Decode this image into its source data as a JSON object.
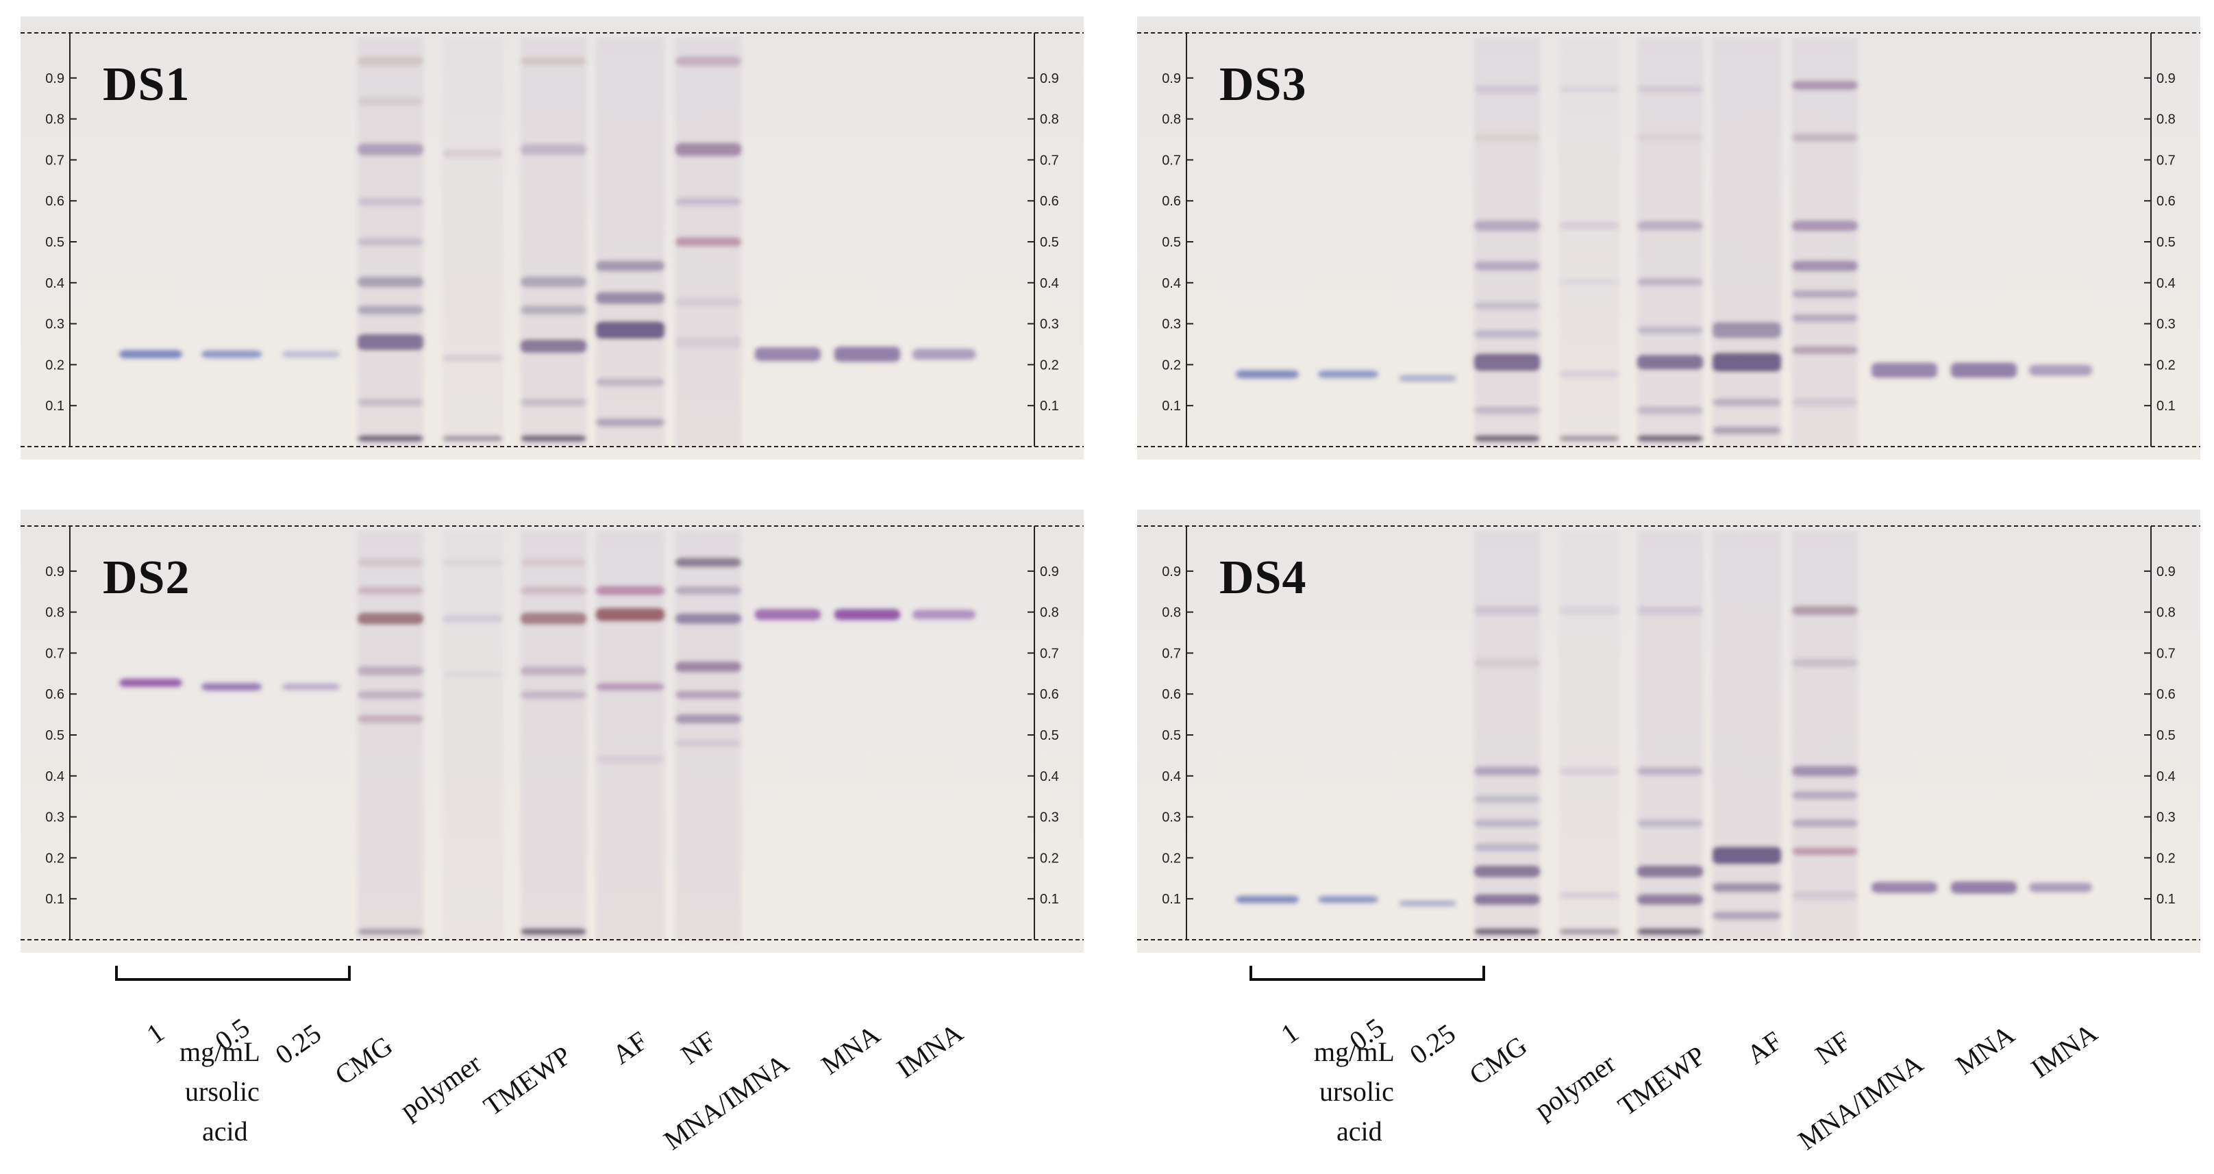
{
  "plates": [
    {
      "id": "DS1",
      "title": "DS1",
      "std_rf": 0.22,
      "lanes": [
        {
          "bands": [
            [
              0.22,
              8,
              "#6a76b6",
              0.85
            ]
          ]
        },
        {
          "bands": [
            [
              0.22,
              7,
              "#6a76b6",
              0.7
            ]
          ]
        },
        {
          "bands": [
            [
              0.22,
              6,
              "#8f95c4",
              0.5
            ]
          ]
        },
        {
          "bands": [
            [
              0.95,
              10,
              "#b7a79c",
              0.4
            ],
            [
              0.85,
              8,
              "#b7aab0",
              0.3
            ],
            [
              0.73,
              14,
              "#8a6f9b",
              0.55
            ],
            [
              0.6,
              8,
              "#9a8fb0",
              0.35
            ],
            [
              0.5,
              8,
              "#8c8aa8",
              0.35
            ],
            [
              0.4,
              12,
              "#7a7390",
              0.55
            ],
            [
              0.33,
              10,
              "#7f7a95",
              0.5
            ],
            [
              0.25,
              20,
              "#6d5a84",
              0.8
            ],
            [
              0.1,
              8,
              "#8d86a0",
              0.35
            ],
            [
              0.01,
              6,
              "#4a3a55",
              0.7
            ]
          ]
        },
        {
          "bands": [
            [
              0.72,
              8,
              "#b9a8b5",
              0.35
            ],
            [
              0.21,
              6,
              "#b2a9bc",
              0.35
            ],
            [
              0.01,
              5,
              "#6a5a70",
              0.5
            ]
          ]
        },
        {
          "bands": [
            [
              0.95,
              8,
              "#b7a79c",
              0.4
            ],
            [
              0.73,
              12,
              "#9a85a8",
              0.45
            ],
            [
              0.4,
              12,
              "#7a7390",
              0.5
            ],
            [
              0.33,
              10,
              "#7f7a95",
              0.45
            ],
            [
              0.24,
              16,
              "#6d5a84",
              0.75
            ],
            [
              0.1,
              8,
              "#8d86a0",
              0.35
            ],
            [
              0.01,
              6,
              "#4a3a55",
              0.7
            ]
          ]
        },
        {
          "bands": [
            [
              0.44,
              12,
              "#7a6f90",
              0.6
            ],
            [
              0.36,
              14,
              "#6e6488",
              0.65
            ],
            [
              0.28,
              22,
              "#5e4c7a",
              0.85
            ],
            [
              0.15,
              8,
              "#8a7e9e",
              0.4
            ],
            [
              0.05,
              8,
              "#7a6f90",
              0.5
            ]
          ]
        },
        {
          "bands": [
            [
              0.95,
              10,
              "#a7869c",
              0.5
            ],
            [
              0.73,
              16,
              "#86608c",
              0.65
            ],
            [
              0.6,
              8,
              "#9a8fb0",
              0.4
            ],
            [
              0.5,
              10,
              "#9c5f80",
              0.55
            ],
            [
              0.35,
              10,
              "#b3a7bd",
              0.3
            ],
            [
              0.25,
              12,
              "#b3a7bd",
              0.3
            ]
          ]
        },
        {
          "bands": [
            [
              0.22,
              16,
              "#7c659a",
              0.75
            ]
          ]
        },
        {
          "bands": [
            [
              0.22,
              18,
              "#7c659a",
              0.8
            ]
          ]
        },
        {
          "bands": [
            [
              0.22,
              12,
              "#8a78a8",
              0.65
            ]
          ]
        }
      ]
    },
    {
      "id": "DS3",
      "title": "DS3",
      "lanes": [
        {
          "bands": [
            [
              0.17,
              8,
              "#6a76b6",
              0.8
            ]
          ]
        },
        {
          "bands": [
            [
              0.17,
              7,
              "#6a76b6",
              0.7
            ]
          ]
        },
        {
          "bands": [
            [
              0.16,
              6,
              "#7f87b8",
              0.55
            ]
          ]
        },
        {
          "bands": [
            [
              0.88,
              8,
              "#b3a9c2",
              0.4
            ],
            [
              0.76,
              8,
              "#c0b6b0",
              0.3
            ],
            [
              0.54,
              12,
              "#8c7aa2",
              0.5
            ],
            [
              0.44,
              10,
              "#8c7aa2",
              0.5
            ],
            [
              0.34,
              8,
              "#9a96b4",
              0.4
            ],
            [
              0.27,
              8,
              "#8f8aab",
              0.45
            ],
            [
              0.2,
              22,
              "#6d5a84",
              0.85
            ],
            [
              0.08,
              8,
              "#8d86a0",
              0.4
            ],
            [
              0.01,
              6,
              "#4a3a55",
              0.7
            ]
          ]
        },
        {
          "bands": [
            [
              0.88,
              6,
              "#c0b8cc",
              0.3
            ],
            [
              0.54,
              8,
              "#b8adc6",
              0.35
            ],
            [
              0.4,
              6,
              "#c0b8cc",
              0.25
            ],
            [
              0.17,
              6,
              "#b8adc6",
              0.35
            ],
            [
              0.01,
              5,
              "#6a5a70",
              0.5
            ]
          ]
        },
        {
          "bands": [
            [
              0.88,
              6,
              "#b3a9c2",
              0.35
            ],
            [
              0.76,
              6,
              "#c0b6b0",
              0.25
            ],
            [
              0.54,
              10,
              "#8c7aa2",
              0.45
            ],
            [
              0.4,
              8,
              "#8c7aa2",
              0.4
            ],
            [
              0.28,
              8,
              "#8f8aab",
              0.4
            ],
            [
              0.2,
              18,
              "#6d5a84",
              0.8
            ],
            [
              0.08,
              8,
              "#8d86a0",
              0.4
            ],
            [
              0.01,
              6,
              "#4a3a55",
              0.7
            ]
          ]
        },
        {
          "bands": [
            [
              0.28,
              20,
              "#6e6488",
              0.6
            ],
            [
              0.2,
              24,
              "#5e4c7a",
              0.85
            ],
            [
              0.1,
              8,
              "#8a7e9e",
              0.45
            ],
            [
              0.03,
              8,
              "#7a6f90",
              0.5
            ]
          ]
        },
        {
          "bands": [
            [
              0.89,
              10,
              "#8d6a92",
              0.6
            ],
            [
              0.76,
              8,
              "#a08a9a",
              0.45
            ],
            [
              0.54,
              12,
              "#85699a",
              0.6
            ],
            [
              0.44,
              12,
              "#7a6090",
              0.6
            ],
            [
              0.37,
              8,
              "#8a7aa2",
              0.5
            ],
            [
              0.31,
              8,
              "#8a7aa2",
              0.5
            ],
            [
              0.23,
              8,
              "#8a6a90",
              0.5
            ],
            [
              0.1,
              8,
              "#b3a7bd",
              0.35
            ]
          ]
        },
        {
          "bands": [
            [
              0.18,
              18,
              "#7c659a",
              0.75
            ]
          ]
        },
        {
          "bands": [
            [
              0.18,
              18,
              "#7c659a",
              0.8
            ]
          ]
        },
        {
          "bands": [
            [
              0.18,
              12,
              "#8a78a8",
              0.65
            ]
          ]
        }
      ]
    },
    {
      "id": "DS2",
      "title": "DS2",
      "lanes": [
        {
          "bands": [
            [
              0.63,
              8,
              "#8a4aa0",
              0.85
            ]
          ]
        },
        {
          "bands": [
            [
              0.62,
              7,
              "#7c5aa5",
              0.75
            ]
          ]
        },
        {
          "bands": [
            [
              0.62,
              6,
              "#9a7fb4",
              0.55
            ]
          ]
        },
        {
          "bands": [
            [
              0.93,
              8,
              "#c0a8b0",
              0.4
            ],
            [
              0.86,
              8,
              "#b28a98",
              0.45
            ],
            [
              0.79,
              14,
              "#8a5a62",
              0.75
            ],
            [
              0.66,
              10,
              "#9a7fa0",
              0.5
            ],
            [
              0.6,
              8,
              "#9a7fa0",
              0.45
            ],
            [
              0.54,
              8,
              "#a07a92",
              0.45
            ],
            [
              0.01,
              5,
              "#6a5a70",
              0.5
            ]
          ]
        },
        {
          "bands": [
            [
              0.93,
              6,
              "#c8b8c0",
              0.3
            ],
            [
              0.79,
              8,
              "#b3aac8",
              0.4
            ],
            [
              0.65,
              5,
              "#c8c0d0",
              0.25
            ]
          ]
        },
        {
          "bands": [
            [
              0.93,
              8,
              "#c0a8b0",
              0.35
            ],
            [
              0.86,
              8,
              "#b28a98",
              0.4
            ],
            [
              0.79,
              14,
              "#8a5a62",
              0.7
            ],
            [
              0.66,
              10,
              "#9a7fa0",
              0.45
            ],
            [
              0.6,
              8,
              "#9a7fa0",
              0.4
            ],
            [
              0.01,
              6,
              "#4a3a55",
              0.7
            ]
          ]
        },
        {
          "bands": [
            [
              0.86,
              10,
              "#a05a8a",
              0.6
            ],
            [
              0.8,
              16,
              "#8a4a52",
              0.8
            ],
            [
              0.62,
              8,
              "#9a6aa0",
              0.55
            ],
            [
              0.44,
              6,
              "#c0a8c0",
              0.35
            ]
          ]
        },
        {
          "bands": [
            [
              0.93,
              10,
              "#6a5a72",
              0.7
            ],
            [
              0.86,
              8,
              "#8a7a9a",
              0.5
            ],
            [
              0.79,
              12,
              "#6a5a8a",
              0.65
            ],
            [
              0.67,
              12,
              "#7a5a82",
              0.65
            ],
            [
              0.6,
              8,
              "#8a6a92",
              0.5
            ],
            [
              0.54,
              10,
              "#7a6090",
              0.55
            ],
            [
              0.48,
              6,
              "#b3a7bd",
              0.35
            ]
          ]
        },
        {
          "bands": [
            [
              0.8,
              12,
              "#8a4aa0",
              0.75
            ]
          ]
        },
        {
          "bands": [
            [
              0.8,
              12,
              "#7c3a9a",
              0.8
            ]
          ]
        },
        {
          "bands": [
            [
              0.8,
              10,
              "#8a5aa8",
              0.6
            ]
          ]
        }
      ]
    },
    {
      "id": "DS4",
      "title": "DS4",
      "lanes": [
        {
          "bands": [
            [
              0.09,
              7,
              "#6a76b6",
              0.8
            ]
          ]
        },
        {
          "bands": [
            [
              0.09,
              6,
              "#6a76b6",
              0.7
            ]
          ]
        },
        {
          "bands": [
            [
              0.08,
              5,
              "#7f87b8",
              0.55
            ]
          ]
        },
        {
          "bands": [
            [
              0.81,
              10,
              "#b3a9c2",
              0.45
            ],
            [
              0.68,
              8,
              "#b8aab0",
              0.35
            ],
            [
              0.41,
              10,
              "#8c7aa2",
              0.55
            ],
            [
              0.34,
              8,
              "#9a96b4",
              0.45
            ],
            [
              0.28,
              8,
              "#8f8aab",
              0.45
            ],
            [
              0.22,
              8,
              "#8f8aab",
              0.45
            ],
            [
              0.16,
              14,
              "#6d5a84",
              0.75
            ],
            [
              0.09,
              12,
              "#6d5a84",
              0.75
            ],
            [
              0.01,
              6,
              "#4a3a55",
              0.7
            ]
          ]
        },
        {
          "bands": [
            [
              0.81,
              8,
              "#c0b8cc",
              0.35
            ],
            [
              0.41,
              8,
              "#b8adc6",
              0.35
            ],
            [
              0.1,
              6,
              "#b8adc6",
              0.4
            ],
            [
              0.01,
              5,
              "#6a5a70",
              0.5
            ]
          ]
        },
        {
          "bands": [
            [
              0.81,
              8,
              "#b3a9c2",
              0.4
            ],
            [
              0.41,
              8,
              "#8c7aa2",
              0.45
            ],
            [
              0.28,
              8,
              "#8f8aab",
              0.4
            ],
            [
              0.16,
              14,
              "#6d5a84",
              0.75
            ],
            [
              0.09,
              12,
              "#6d5a84",
              0.7
            ],
            [
              0.01,
              6,
              "#4a3a55",
              0.7
            ]
          ]
        },
        {
          "bands": [
            [
              0.2,
              22,
              "#5e4c7a",
              0.85
            ],
            [
              0.12,
              10,
              "#6e6488",
              0.6
            ],
            [
              0.05,
              8,
              "#7a6f90",
              0.5
            ]
          ]
        },
        {
          "bands": [
            [
              0.81,
              10,
              "#8d6a82",
              0.55
            ],
            [
              0.68,
              8,
              "#a09aa8",
              0.4
            ],
            [
              0.41,
              12,
              "#7a6090",
              0.6
            ],
            [
              0.35,
              8,
              "#8a7aa2",
              0.5
            ],
            [
              0.28,
              8,
              "#8a7aa2",
              0.5
            ],
            [
              0.21,
              8,
              "#a05a80",
              0.5
            ],
            [
              0.1,
              8,
              "#b3a7bd",
              0.35
            ]
          ]
        },
        {
          "bands": [
            [
              0.12,
              12,
              "#7c659a",
              0.75
            ]
          ]
        },
        {
          "bands": [
            [
              0.12,
              14,
              "#7c659a",
              0.8
            ]
          ]
        },
        {
          "bands": [
            [
              0.12,
              10,
              "#8a78a8",
              0.65
            ]
          ]
        }
      ]
    }
  ],
  "rf_ticks": [
    "0.9",
    "0.8",
    "0.7",
    "0.6",
    "0.5",
    "0.4",
    "0.3",
    "0.2",
    "0.1"
  ],
  "labels": {
    "conc": [
      "1",
      "0.5",
      "0.25"
    ],
    "unit": "mg/mL",
    "std1": "ursolic",
    "std2": "acid",
    "samples": [
      "CMG",
      "polymer",
      "TMEWP",
      "AF",
      "NF",
      "MNA/IMNA",
      "MNA",
      "IMNA"
    ]
  }
}
